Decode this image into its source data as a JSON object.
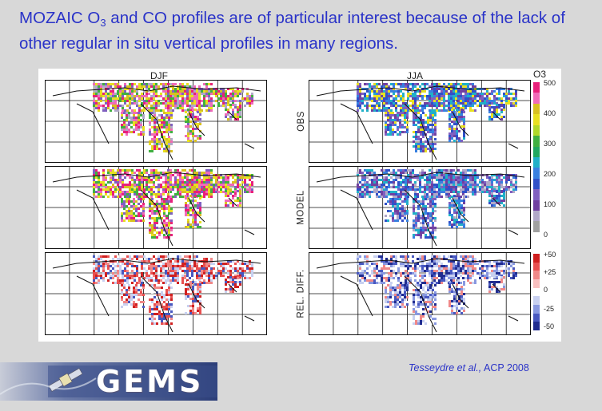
{
  "headline": {
    "part1": "MOZAIC O",
    "sub": "3",
    "part2": " and CO profiles are of particular interest because of the lack of other regular in situ vertical profiles in many regions."
  },
  "figure": {
    "columns": [
      "DJF",
      "JJA"
    ],
    "rows": [
      "OBS",
      "MODEL",
      "REL. DIFF."
    ],
    "o3_colorbar": {
      "title": "O3",
      "ticks": [
        "500",
        "400",
        "300",
        "200",
        "100",
        "0"
      ],
      "colors": [
        "#e8207a",
        "#f06ab8",
        "#d8c020",
        "#e8e020",
        "#b0d828",
        "#40b040",
        "#20a860",
        "#20b0c8",
        "#3880e0",
        "#3050c8",
        "#8060c0",
        "#7040a0",
        "#b0a8c8",
        "#a0a0a0"
      ]
    },
    "diff_colorbar": {
      "ticks": [
        "+50",
        "+25",
        "0",
        "-25",
        "-50"
      ],
      "colors": [
        "#d02020",
        "#e85050",
        "#f08888",
        "#f8c0c0",
        "#ffffff",
        "#c8d0f0",
        "#8898e0",
        "#4858c0",
        "#202c90"
      ]
    }
  },
  "citation": {
    "authors": "Tesseydre et al.,",
    "ref": " ACP 2008"
  },
  "logo": {
    "text": "GEMS"
  }
}
